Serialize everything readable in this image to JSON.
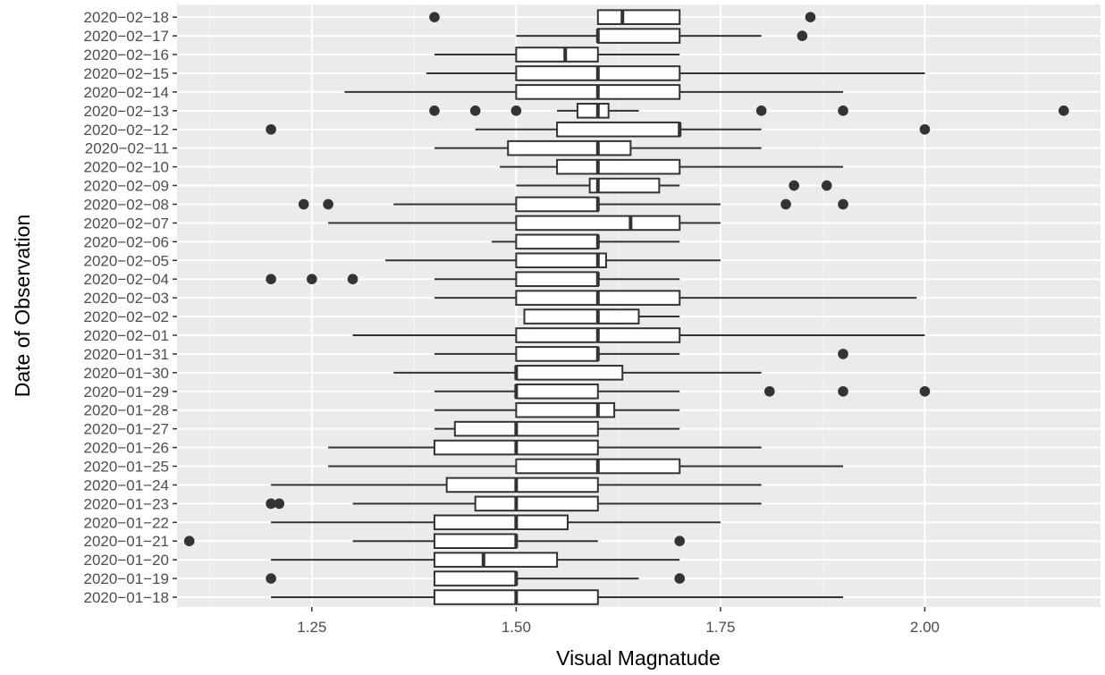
{
  "chart_data": {
    "type": "boxplot",
    "title": "",
    "xlabel": "Visual Magnatude",
    "ylabel": "Date of Observation",
    "xlim": [
      1.085,
      2.215
    ],
    "x_ticks": [
      1.25,
      1.5,
      1.75,
      2.0
    ],
    "x_tick_labels": [
      "1.25",
      "1.50",
      "1.75",
      "2.00"
    ],
    "grid": true,
    "orientation": "horizontal",
    "colors": {
      "panel_background": "#ebebeb",
      "grid_major": "#ffffff",
      "grid_minor": "#f5f5f5",
      "box_fill": "#ffffff",
      "box_line": "#333333",
      "outlier": "#333333",
      "tick_text": "#4d4d4d",
      "axis_title": "#000000"
    },
    "categories": [
      "2020-01-18",
      "2020-01-19",
      "2020-01-20",
      "2020-01-21",
      "2020-01-22",
      "2020-01-23",
      "2020-01-24",
      "2020-01-25",
      "2020-01-26",
      "2020-01-27",
      "2020-01-28",
      "2020-01-29",
      "2020-01-30",
      "2020-01-31",
      "2020-02-01",
      "2020-02-02",
      "2020-02-03",
      "2020-02-04",
      "2020-02-05",
      "2020-02-06",
      "2020-02-07",
      "2020-02-08",
      "2020-02-09",
      "2020-02-10",
      "2020-02-11",
      "2020-02-12",
      "2020-02-13",
      "2020-02-14",
      "2020-02-15",
      "2020-02-16",
      "2020-02-17",
      "2020-02-18"
    ],
    "category_labels": [
      "2020−01−18",
      "2020−01−19",
      "2020−01−20",
      "2020−01−21",
      "2020−01−22",
      "2020−01−23",
      "2020−01−24",
      "2020−01−25",
      "2020−01−26",
      "2020−01−27",
      "2020−01−28",
      "2020−01−29",
      "2020−01−30",
      "2020−01−31",
      "2020−02−01",
      "2020−02−02",
      "2020−02−03",
      "2020−02−04",
      "2020−02−05",
      "2020−02−06",
      "2020−02−07",
      "2020−02−08",
      "2020−02−09",
      "2020−02−10",
      "2020−02−11",
      "2020−02−12",
      "2020−02−13",
      "2020−02−14",
      "2020−02−15",
      "2020−02−16",
      "2020−02−17",
      "2020−02−18"
    ],
    "boxes": [
      {
        "date": "2020-01-18",
        "whisker_low": 1.2,
        "q1": 1.4,
        "median": 1.5,
        "q3": 1.6,
        "whisker_high": 1.9,
        "outliers": []
      },
      {
        "date": "2020-01-19",
        "whisker_low": 1.4,
        "q1": 1.4,
        "median": 1.5,
        "q3": 1.5,
        "whisker_high": 1.65,
        "outliers": [
          1.2,
          1.7
        ]
      },
      {
        "date": "2020-01-20",
        "whisker_low": 1.2,
        "q1": 1.4,
        "median": 1.46,
        "q3": 1.55,
        "whisker_high": 1.7,
        "outliers": []
      },
      {
        "date": "2020-01-21",
        "whisker_low": 1.3,
        "q1": 1.4,
        "median": 1.5,
        "q3": 1.5,
        "whisker_high": 1.6,
        "outliers": [
          1.1,
          1.7
        ]
      },
      {
        "date": "2020-01-22",
        "whisker_low": 1.2,
        "q1": 1.4,
        "median": 1.5,
        "q3": 1.563,
        "whisker_high": 1.75,
        "outliers": []
      },
      {
        "date": "2020-01-23",
        "whisker_low": 1.3,
        "q1": 1.45,
        "median": 1.5,
        "q3": 1.6,
        "whisker_high": 1.8,
        "outliers": [
          1.2,
          1.21
        ]
      },
      {
        "date": "2020-01-24",
        "whisker_low": 1.2,
        "q1": 1.415,
        "median": 1.5,
        "q3": 1.6,
        "whisker_high": 1.8,
        "outliers": []
      },
      {
        "date": "2020-01-25",
        "whisker_low": 1.27,
        "q1": 1.5,
        "median": 1.6,
        "q3": 1.7,
        "whisker_high": 1.9,
        "outliers": []
      },
      {
        "date": "2020-01-26",
        "whisker_low": 1.27,
        "q1": 1.4,
        "median": 1.5,
        "q3": 1.6,
        "whisker_high": 1.8,
        "outliers": []
      },
      {
        "date": "2020-01-27",
        "whisker_low": 1.4,
        "q1": 1.425,
        "median": 1.5,
        "q3": 1.6,
        "whisker_high": 1.7,
        "outliers": []
      },
      {
        "date": "2020-01-28",
        "whisker_low": 1.4,
        "q1": 1.5,
        "median": 1.6,
        "q3": 1.62,
        "whisker_high": 1.7,
        "outliers": []
      },
      {
        "date": "2020-01-29",
        "whisker_low": 1.4,
        "q1": 1.5,
        "median": 1.5,
        "q3": 1.6,
        "whisker_high": 1.7,
        "outliers": [
          1.81,
          1.9,
          2.0
        ]
      },
      {
        "date": "2020-01-30",
        "whisker_low": 1.35,
        "q1": 1.5,
        "median": 1.5,
        "q3": 1.63,
        "whisker_high": 1.8,
        "outliers": []
      },
      {
        "date": "2020-01-31",
        "whisker_low": 1.4,
        "q1": 1.5,
        "median": 1.6,
        "q3": 1.6,
        "whisker_high": 1.7,
        "outliers": [
          1.9
        ]
      },
      {
        "date": "2020-02-01",
        "whisker_low": 1.3,
        "q1": 1.5,
        "median": 1.6,
        "q3": 1.7,
        "whisker_high": 2.0,
        "outliers": []
      },
      {
        "date": "2020-02-02",
        "whisker_low": 1.51,
        "q1": 1.51,
        "median": 1.6,
        "q3": 1.65,
        "whisker_high": 1.7,
        "outliers": []
      },
      {
        "date": "2020-02-03",
        "whisker_low": 1.4,
        "q1": 1.5,
        "median": 1.6,
        "q3": 1.7,
        "whisker_high": 1.99,
        "outliers": []
      },
      {
        "date": "2020-02-04",
        "whisker_low": 1.4,
        "q1": 1.5,
        "median": 1.6,
        "q3": 1.6,
        "whisker_high": 1.7,
        "outliers": [
          1.2,
          1.25,
          1.3
        ]
      },
      {
        "date": "2020-02-05",
        "whisker_low": 1.34,
        "q1": 1.5,
        "median": 1.6,
        "q3": 1.61,
        "whisker_high": 1.75,
        "outliers": []
      },
      {
        "date": "2020-02-06",
        "whisker_low": 1.47,
        "q1": 1.5,
        "median": 1.6,
        "q3": 1.6,
        "whisker_high": 1.7,
        "outliers": []
      },
      {
        "date": "2020-02-07",
        "whisker_low": 1.27,
        "q1": 1.5,
        "median": 1.64,
        "q3": 1.7,
        "whisker_high": 1.75,
        "outliers": []
      },
      {
        "date": "2020-02-08",
        "whisker_low": 1.35,
        "q1": 1.5,
        "median": 1.6,
        "q3": 1.6,
        "whisker_high": 1.75,
        "outliers": [
          1.24,
          1.27,
          1.83,
          1.9
        ]
      },
      {
        "date": "2020-02-09",
        "whisker_low": 1.5,
        "q1": 1.59,
        "median": 1.6,
        "q3": 1.675,
        "whisker_high": 1.7,
        "outliers": [
          1.84,
          1.88
        ]
      },
      {
        "date": "2020-02-10",
        "whisker_low": 1.48,
        "q1": 1.55,
        "median": 1.6,
        "q3": 1.7,
        "whisker_high": 1.9,
        "outliers": []
      },
      {
        "date": "2020-02-11",
        "whisker_low": 1.4,
        "q1": 1.49,
        "median": 1.6,
        "q3": 1.64,
        "whisker_high": 1.8,
        "outliers": []
      },
      {
        "date": "2020-02-12",
        "whisker_low": 1.45,
        "q1": 1.55,
        "median": 1.7,
        "q3": 1.7,
        "whisker_high": 1.8,
        "outliers": [
          1.2,
          2.0
        ]
      },
      {
        "date": "2020-02-13",
        "whisker_low": 1.55,
        "q1": 1.575,
        "median": 1.6,
        "q3": 1.613,
        "whisker_high": 1.65,
        "outliers": [
          1.4,
          1.45,
          1.5,
          1.8,
          1.9,
          2.17
        ]
      },
      {
        "date": "2020-02-14",
        "whisker_low": 1.29,
        "q1": 1.5,
        "median": 1.6,
        "q3": 1.7,
        "whisker_high": 1.9,
        "outliers": []
      },
      {
        "date": "2020-02-15",
        "whisker_low": 1.39,
        "q1": 1.5,
        "median": 1.6,
        "q3": 1.7,
        "whisker_high": 2.0,
        "outliers": []
      },
      {
        "date": "2020-02-16",
        "whisker_low": 1.4,
        "q1": 1.5,
        "median": 1.56,
        "q3": 1.6,
        "whisker_high": 1.7,
        "outliers": []
      },
      {
        "date": "2020-02-17",
        "whisker_low": 1.5,
        "q1": 1.6,
        "median": 1.6,
        "q3": 1.7,
        "whisker_high": 1.8,
        "outliers": [
          1.85
        ]
      },
      {
        "date": "2020-02-18",
        "whisker_low": 1.6,
        "q1": 1.6,
        "median": 1.63,
        "q3": 1.7,
        "whisker_high": 1.7,
        "outliers": [
          1.4,
          1.86
        ]
      }
    ]
  }
}
